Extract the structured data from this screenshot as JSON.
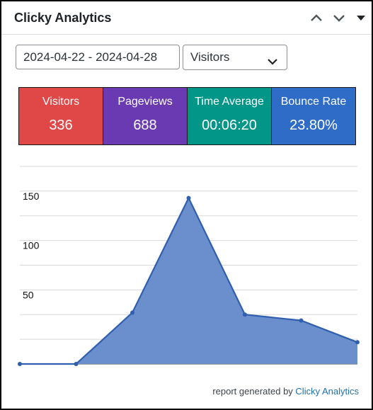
{
  "widget": {
    "title": "Clicky Analytics",
    "collapse_up_icon": "chevron-up-icon",
    "collapse_down_icon": "chevron-down-icon"
  },
  "controls": {
    "date_range": "2024-04-22 - 2024-04-28",
    "metric_select": "Visitors"
  },
  "stats": [
    {
      "label": "Visitors",
      "value": "336",
      "color": "#e04848"
    },
    {
      "label": "Pageviews",
      "value": "688",
      "color": "#6a3ab2"
    },
    {
      "label": "Time Average",
      "value": "00:06:20",
      "color": "#019688"
    },
    {
      "label": "Bounce Rate",
      "value": "23.80%",
      "color": "#2f6cc7"
    }
  ],
  "chart_data": {
    "type": "area",
    "title": "",
    "xlabel": "",
    "ylabel": "",
    "ylim": [
      0,
      200
    ],
    "y_ticks": [
      50,
      100,
      150,
      200
    ],
    "grid": true,
    "series": [
      {
        "values": [
          0,
          0,
          52,
          168,
          50,
          44,
          22
        ],
        "color": "#2f5fae",
        "fill": "#6a8fcc"
      }
    ]
  },
  "footer": {
    "prefix": "report generated by",
    "link": "Clicky Analytics"
  }
}
